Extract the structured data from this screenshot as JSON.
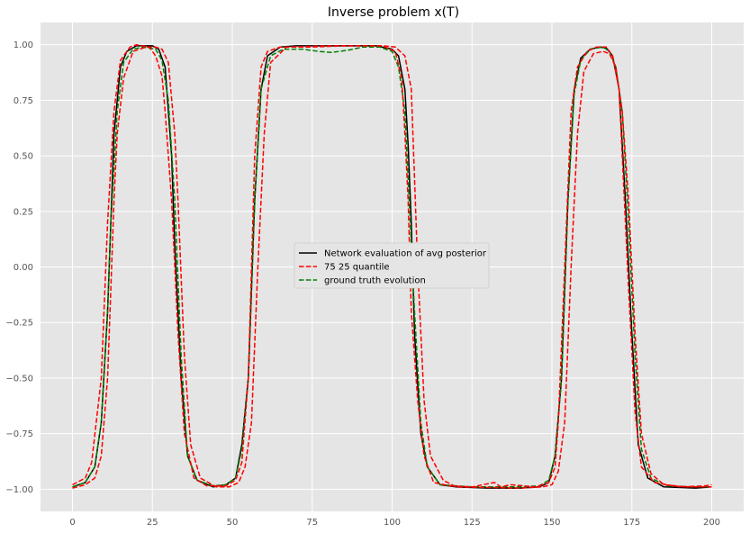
{
  "chart_data": {
    "type": "line",
    "title": "Inverse problem x(T)",
    "xlabel": "",
    "ylabel": "",
    "xlim": [
      -10,
      210
    ],
    "ylim": [
      -1.1,
      1.1
    ],
    "xticks": [
      0,
      25,
      50,
      75,
      100,
      125,
      150,
      175,
      200
    ],
    "yticks": [
      -1.0,
      -0.75,
      -0.5,
      -0.25,
      0.0,
      0.25,
      0.5,
      0.75,
      1.0
    ],
    "xtick_labels": [
      "0",
      "25",
      "50",
      "75",
      "100",
      "125",
      "150",
      "175",
      "200"
    ],
    "ytick_labels": [
      "−1.00",
      "−0.75",
      "−0.50",
      "−0.25",
      "0.00",
      "0.25",
      "0.50",
      "0.75",
      "1.00"
    ],
    "grid": true,
    "legend_position": "center",
    "style": {
      "background": "#e5e5e5",
      "grid_color": "#ffffff"
    },
    "series": [
      {
        "name": "Network evaluation of avg posterior",
        "color": "#000000",
        "dash": "solid",
        "points": [
          [
            0,
            -0.99
          ],
          [
            4,
            -0.97
          ],
          [
            7,
            -0.9
          ],
          [
            9,
            -0.7
          ],
          [
            11,
            -0.2
          ],
          [
            12,
            0.2
          ],
          [
            13,
            0.6
          ],
          [
            15,
            0.9
          ],
          [
            17,
            0.97
          ],
          [
            20,
            0.995
          ],
          [
            25,
            0.995
          ],
          [
            27,
            0.98
          ],
          [
            29,
            0.9
          ],
          [
            31,
            0.5
          ],
          [
            32,
            0.1
          ],
          [
            34,
            -0.5
          ],
          [
            36,
            -0.85
          ],
          [
            39,
            -0.96
          ],
          [
            44,
            -0.99
          ],
          [
            48,
            -0.98
          ],
          [
            51,
            -0.95
          ],
          [
            53,
            -0.8
          ],
          [
            55,
            -0.5
          ],
          [
            57,
            0.3
          ],
          [
            59,
            0.8
          ],
          [
            61,
            0.95
          ],
          [
            65,
            0.99
          ],
          [
            70,
            0.995
          ],
          [
            80,
            0.995
          ],
          [
            95,
            0.995
          ],
          [
            100,
            0.98
          ],
          [
            102,
            0.95
          ],
          [
            104,
            0.8
          ],
          [
            105,
            0.55
          ],
          [
            106,
            0.2
          ],
          [
            107,
            -0.3
          ],
          [
            109,
            -0.75
          ],
          [
            111,
            -0.9
          ],
          [
            115,
            -0.98
          ],
          [
            120,
            -0.99
          ],
          [
            130,
            -0.995
          ],
          [
            140,
            -0.995
          ],
          [
            146,
            -0.99
          ],
          [
            149,
            -0.97
          ],
          [
            151,
            -0.85
          ],
          [
            153,
            -0.5
          ],
          [
            155,
            0.3
          ],
          [
            157,
            0.8
          ],
          [
            159,
            0.94
          ],
          [
            162,
            0.98
          ],
          [
            165,
            0.99
          ],
          [
            167,
            0.985
          ],
          [
            169,
            0.95
          ],
          [
            171,
            0.8
          ],
          [
            173,
            0.3
          ],
          [
            175,
            -0.3
          ],
          [
            177,
            -0.8
          ],
          [
            180,
            -0.95
          ],
          [
            185,
            -0.99
          ],
          [
            195,
            -0.995
          ],
          [
            200,
            -0.99
          ]
        ]
      },
      {
        "name": "75 25 quantile",
        "color": "#ff0000",
        "dash": "dashed",
        "points": [
          [
            0,
            -0.98
          ],
          [
            4,
            -0.95
          ],
          [
            6,
            -0.88
          ],
          [
            9,
            -0.5
          ],
          [
            11,
            0.2
          ],
          [
            13,
            0.7
          ],
          [
            15,
            0.93
          ],
          [
            18,
            0.99
          ],
          [
            20,
            1.0
          ],
          [
            24,
            0.99
          ],
          [
            26,
            0.95
          ],
          [
            28,
            0.86
          ],
          [
            29,
            0.7
          ],
          [
            31,
            0.3
          ],
          [
            33,
            -0.3
          ],
          [
            35,
            -0.75
          ],
          [
            38,
            -0.95
          ],
          [
            42,
            -0.985
          ],
          [
            48,
            -0.985
          ],
          [
            51,
            -0.96
          ],
          [
            53,
            -0.88
          ],
          [
            55,
            -0.5
          ],
          [
            57,
            0.5
          ],
          [
            59,
            0.9
          ],
          [
            61,
            0.97
          ],
          [
            65,
            0.99
          ],
          [
            75,
            0.99
          ],
          [
            85,
            0.995
          ],
          [
            97,
            0.995
          ],
          [
            101,
            0.97
          ],
          [
            103,
            0.85
          ],
          [
            104,
            0.6
          ],
          [
            105,
            0.3
          ],
          [
            106,
            -0.2
          ],
          [
            108,
            -0.6
          ],
          [
            110,
            -0.85
          ],
          [
            113,
            -0.97
          ],
          [
            118,
            -0.985
          ],
          [
            125,
            -0.99
          ],
          [
            132,
            -0.97
          ],
          [
            134,
            -0.99
          ],
          [
            137,
            -0.98
          ],
          [
            145,
            -0.99
          ],
          [
            149,
            -0.97
          ],
          [
            151,
            -0.9
          ],
          [
            152,
            -0.7
          ],
          [
            154,
            0.0
          ],
          [
            156,
            0.7
          ],
          [
            158,
            0.9
          ],
          [
            161,
            0.97
          ],
          [
            164,
            0.99
          ],
          [
            167,
            0.99
          ],
          [
            169,
            0.95
          ],
          [
            171,
            0.8
          ],
          [
            172,
            0.5
          ],
          [
            174,
            -0.1
          ],
          [
            176,
            -0.65
          ],
          [
            178,
            -0.9
          ],
          [
            182,
            -0.97
          ],
          [
            190,
            -0.99
          ],
          [
            198,
            -0.985
          ],
          [
            200,
            -0.98
          ]
        ]
      },
      {
        "name": "75 25 quantile",
        "color": "#ff0000",
        "dash": "dashed",
        "points": [
          [
            0,
            -0.995
          ],
          [
            4,
            -0.98
          ],
          [
            7,
            -0.95
          ],
          [
            9,
            -0.85
          ],
          [
            11,
            -0.5
          ],
          [
            12,
            -0.1
          ],
          [
            13,
            0.3
          ],
          [
            14,
            0.6
          ],
          [
            16,
            0.85
          ],
          [
            19,
            0.97
          ],
          [
            23,
            0.99
          ],
          [
            26,
            0.99
          ],
          [
            28,
            0.98
          ],
          [
            30,
            0.92
          ],
          [
            32,
            0.6
          ],
          [
            33,
            0.3
          ],
          [
            35,
            -0.4
          ],
          [
            37,
            -0.8
          ],
          [
            40,
            -0.95
          ],
          [
            45,
            -0.99
          ],
          [
            49,
            -0.99
          ],
          [
            52,
            -0.97
          ],
          [
            54,
            -0.9
          ],
          [
            56,
            -0.7
          ],
          [
            58,
            0.0
          ],
          [
            60,
            0.6
          ],
          [
            62,
            0.92
          ],
          [
            67,
            0.99
          ],
          [
            80,
            0.995
          ],
          [
            97,
            0.995
          ],
          [
            101,
            0.99
          ],
          [
            104,
            0.95
          ],
          [
            106,
            0.8
          ],
          [
            107,
            0.4
          ],
          [
            108,
            0.0
          ],
          [
            110,
            -0.6
          ],
          [
            112,
            -0.85
          ],
          [
            116,
            -0.96
          ],
          [
            120,
            -0.99
          ],
          [
            140,
            -0.995
          ],
          [
            147,
            -0.99
          ],
          [
            150,
            -0.98
          ],
          [
            152,
            -0.92
          ],
          [
            154,
            -0.7
          ],
          [
            156,
            0.0
          ],
          [
            158,
            0.6
          ],
          [
            160,
            0.88
          ],
          [
            163,
            0.96
          ],
          [
            166,
            0.97
          ],
          [
            168,
            0.96
          ],
          [
            170,
            0.9
          ],
          [
            172,
            0.7
          ],
          [
            174,
            0.3
          ],
          [
            176,
            -0.3
          ],
          [
            178,
            -0.75
          ],
          [
            181,
            -0.93
          ],
          [
            185,
            -0.98
          ],
          [
            192,
            -0.99
          ],
          [
            200,
            -0.99
          ]
        ]
      },
      {
        "name": "ground truth evolution",
        "color": "#008000",
        "dash": "dashed",
        "points": [
          [
            0,
            -0.99
          ],
          [
            4,
            -0.97
          ],
          [
            7,
            -0.9
          ],
          [
            9,
            -0.7
          ],
          [
            11,
            -0.2
          ],
          [
            12,
            0.2
          ],
          [
            14,
            0.7
          ],
          [
            16,
            0.92
          ],
          [
            19,
            0.98
          ],
          [
            22,
            0.99
          ],
          [
            26,
            0.98
          ],
          [
            28,
            0.93
          ],
          [
            30,
            0.75
          ],
          [
            32,
            0.3
          ],
          [
            34,
            -0.4
          ],
          [
            36,
            -0.85
          ],
          [
            39,
            -0.96
          ],
          [
            44,
            -0.985
          ],
          [
            48,
            -0.98
          ],
          [
            51,
            -0.95
          ],
          [
            53,
            -0.82
          ],
          [
            55,
            -0.5
          ],
          [
            57,
            0.3
          ],
          [
            59,
            0.8
          ],
          [
            62,
            0.95
          ],
          [
            66,
            0.98
          ],
          [
            72,
            0.98
          ],
          [
            77,
            0.97
          ],
          [
            81,
            0.965
          ],
          [
            86,
            0.975
          ],
          [
            91,
            0.99
          ],
          [
            96,
            0.99
          ],
          [
            100,
            0.97
          ],
          [
            102,
            0.9
          ],
          [
            104,
            0.7
          ],
          [
            105,
            0.4
          ],
          [
            107,
            -0.2
          ],
          [
            109,
            -0.7
          ],
          [
            111,
            -0.9
          ],
          [
            115,
            -0.98
          ],
          [
            125,
            -0.99
          ],
          [
            140,
            -0.99
          ],
          [
            146,
            -0.985
          ],
          [
            149,
            -0.96
          ],
          [
            151,
            -0.85
          ],
          [
            153,
            -0.5
          ],
          [
            155,
            0.3
          ],
          [
            157,
            0.78
          ],
          [
            159,
            0.93
          ],
          [
            162,
            0.98
          ],
          [
            166,
            0.99
          ],
          [
            168,
            0.97
          ],
          [
            170,
            0.9
          ],
          [
            172,
            0.7
          ],
          [
            174,
            0.2
          ],
          [
            176,
            -0.4
          ],
          [
            178,
            -0.82
          ],
          [
            181,
            -0.95
          ],
          [
            186,
            -0.985
          ],
          [
            195,
            -0.99
          ],
          [
            200,
            -0.99
          ]
        ]
      }
    ],
    "legend": [
      {
        "label": "Network evaluation of avg posterior",
        "color": "#000000",
        "dash": "solid"
      },
      {
        "label": "75 25 quantile",
        "color": "#ff0000",
        "dash": "dashed"
      },
      {
        "label": "ground truth evolution",
        "color": "#008000",
        "dash": "dashed"
      }
    ]
  }
}
